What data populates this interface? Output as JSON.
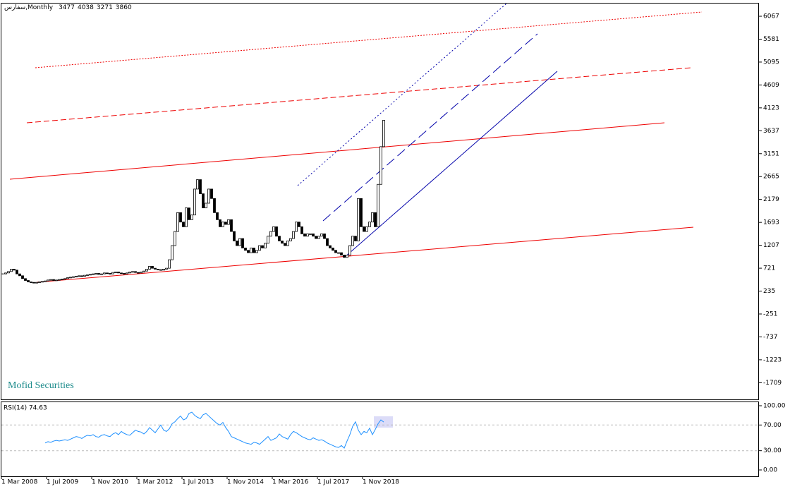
{
  "chart_data": [
    {
      "type": "candlestick",
      "title": "سفارس,Monthly",
      "ohlc": [
        3477,
        4038,
        3271,
        3860
      ],
      "watermark": "Mofid Securities",
      "color": "#000000",
      "categories": [
        "1 Mar 2008",
        null,
        null,
        null,
        null,
        null,
        null,
        null,
        null,
        null,
        null,
        null,
        null,
        null,
        null,
        null,
        "1 Jul 2009",
        null,
        null,
        null,
        null,
        null,
        null,
        null,
        null,
        null,
        null,
        null,
        null,
        null,
        null,
        null,
        "1 Nov 2010",
        null,
        null,
        null,
        null,
        null,
        null,
        null,
        null,
        null,
        null,
        null,
        null,
        null,
        null,
        null,
        "1 Mar 2012",
        null,
        null,
        null,
        null,
        null,
        null,
        null,
        null,
        null,
        null,
        null,
        null,
        null,
        null,
        null,
        "1 Jul 2013",
        null,
        null,
        null,
        null,
        null,
        null,
        null,
        null,
        null,
        null,
        null,
        null,
        null,
        null,
        null,
        "1 Nov 2014",
        null,
        null,
        null,
        null,
        null,
        null,
        null,
        null,
        null,
        null,
        null,
        null,
        null,
        null,
        null,
        "1 Mar 2016",
        null,
        null,
        null,
        null,
        null,
        null,
        null,
        null,
        null,
        null,
        null,
        null,
        null,
        null,
        null,
        "1 Jul 2017",
        null,
        null,
        null,
        null,
        null,
        null,
        null,
        null,
        null,
        null,
        null,
        null,
        null,
        null,
        null,
        "1 Nov 2018",
        null,
        null,
        null,
        null,
        null,
        null,
        null
      ],
      "values": [
        600,
        620,
        650,
        700,
        680,
        600,
        560,
        500,
        460,
        430,
        420,
        410,
        420,
        430,
        440,
        450,
        470,
        480,
        460,
        470,
        480,
        490,
        500,
        520,
        530,
        540,
        550,
        560,
        550,
        570,
        580,
        590,
        600,
        610,
        590,
        600,
        620,
        610,
        600,
        630,
        640,
        620,
        610,
        600,
        620,
        640,
        650,
        630,
        620,
        640,
        660,
        700,
        760,
        720,
        700,
        690,
        680,
        700,
        720,
        900,
        1200,
        1500,
        1900,
        1700,
        1600,
        2000,
        1750,
        1850,
        2400,
        2600,
        2300,
        2000,
        2100,
        2400,
        2200,
        1900,
        1750,
        1600,
        1700,
        1650,
        1750,
        1500,
        1300,
        1200,
        1350,
        1150,
        1100,
        1050,
        1150,
        1050,
        1100,
        1200,
        1150,
        1250,
        1400,
        1500,
        1600,
        1400,
        1300,
        1250,
        1200,
        1300,
        1350,
        1500,
        1700,
        1600,
        1450,
        1400,
        1450,
        1450,
        1400,
        1350,
        1400,
        1450,
        1350,
        1200,
        1150,
        1100,
        1050,
        1050,
        1000,
        950,
        1000,
        1200,
        1400,
        1300,
        2200,
        1600,
        1500,
        1600,
        1700,
        1900,
        1600,
        2500,
        3300,
        3860
      ],
      "ylim": [
        -2063,
        6337
      ],
      "yticks": [
        6067,
        5581,
        5095,
        4609,
        4123,
        3637,
        3151,
        2665,
        2179,
        1693,
        1207,
        721,
        235,
        -251,
        -737,
        -1223,
        -1709
      ]
    },
    {
      "type": "line",
      "title": "RSI(14) 74.63",
      "color": "#1e90ff",
      "values": [
        null,
        null,
        null,
        null,
        null,
        null,
        null,
        null,
        null,
        null,
        null,
        null,
        null,
        null,
        null,
        42,
        44,
        43,
        45,
        46,
        45,
        46,
        47,
        46,
        48,
        50,
        52,
        51,
        49,
        52,
        54,
        53,
        55,
        52,
        51,
        54,
        55,
        53,
        52,
        56,
        58,
        55,
        60,
        57,
        55,
        54,
        58,
        62,
        60,
        59,
        56,
        60,
        66,
        62,
        58,
        64,
        70,
        62,
        60,
        64,
        72,
        75,
        80,
        84,
        78,
        80,
        88,
        90,
        85,
        82,
        80,
        86,
        88,
        84,
        80,
        76,
        72,
        70,
        74,
        66,
        60,
        52,
        50,
        48,
        46,
        44,
        42,
        41,
        40,
        43,
        42,
        40,
        44,
        48,
        52,
        46,
        48,
        50,
        56,
        52,
        50,
        48,
        55,
        60,
        58,
        55,
        52,
        50,
        48,
        47,
        50,
        48,
        46,
        47,
        45,
        42,
        40,
        38,
        36,
        35,
        38,
        34,
        45,
        55,
        68,
        75,
        62,
        55,
        60,
        58,
        65,
        55,
        63,
        72,
        78,
        74.63
      ],
      "ylim": [
        -9.9,
        105.5
      ],
      "yticks": [
        {
          "value": 100,
          "label": "100.00"
        },
        {
          "value": 70,
          "label": "70.00"
        },
        {
          "value": 30,
          "label": "30.00"
        },
        {
          "value": 0,
          "label": "0.00"
        }
      ]
    }
  ]
}
